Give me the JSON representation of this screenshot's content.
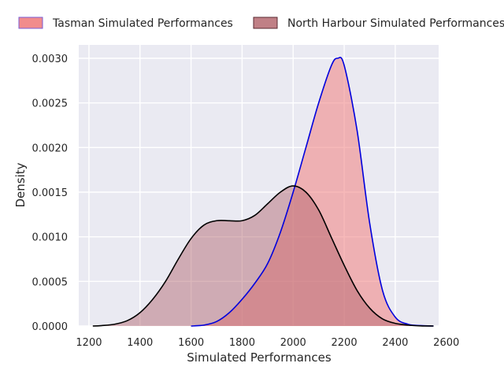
{
  "chart_data": {
    "type": "area",
    "xlabel": "Simulated Performances",
    "ylabel": "Density",
    "xlim": [
      1160,
      2570
    ],
    "ylim": [
      0,
      0.00315
    ],
    "x_ticks": [
      1200,
      1400,
      1600,
      1800,
      2000,
      2200,
      2400,
      2600
    ],
    "x_tick_labels": [
      "1200",
      "1400",
      "1600",
      "1800",
      "2000",
      "2200",
      "2400",
      "2600"
    ],
    "y_ticks": [
      0,
      0.0005,
      0.001,
      0.0015,
      0.002,
      0.0025,
      0.003
    ],
    "y_tick_labels": [
      "0.0000",
      "0.0005",
      "0.0010",
      "0.0015",
      "0.0020",
      "0.0025",
      "0.0030"
    ],
    "grid": true,
    "legend_position": "top (above plot, two columns)",
    "background": "#eaeaf2",
    "series": [
      {
        "name": "Tasman Simulated Performances",
        "fill": "#f08080",
        "fill_opacity": 0.55,
        "line_color": "#0000dd",
        "x": [
          1600,
          1650,
          1700,
          1750,
          1800,
          1850,
          1900,
          1950,
          2000,
          2050,
          2100,
          2150,
          2175,
          2200,
          2250,
          2300,
          2350,
          2400,
          2450,
          2500,
          2550
        ],
        "y": [
          0.0,
          1e-05,
          5e-05,
          0.00015,
          0.0003,
          0.00048,
          0.0007,
          0.00105,
          0.0015,
          0.002,
          0.0025,
          0.00292,
          0.003,
          0.00292,
          0.0022,
          0.00115,
          0.0004,
          0.0001,
          2e-05,
          5e-06,
          0.0
        ]
      },
      {
        "name": "North Harbour Simulated Performances",
        "fill": "#b06068",
        "fill_opacity": 0.45,
        "line_color": "#000000",
        "x": [
          1215,
          1250,
          1300,
          1350,
          1400,
          1450,
          1500,
          1550,
          1600,
          1650,
          1700,
          1750,
          1800,
          1850,
          1900,
          1950,
          2000,
          2050,
          2100,
          2150,
          2200,
          2250,
          2300,
          2350,
          2400,
          2450,
          2500,
          2550
        ],
        "y": [
          0.0,
          5e-06,
          2e-05,
          6e-05,
          0.00015,
          0.0003,
          0.0005,
          0.00075,
          0.00098,
          0.00113,
          0.00118,
          0.00118,
          0.00118,
          0.00124,
          0.00137,
          0.0015,
          0.00157,
          0.0015,
          0.0013,
          0.00099,
          0.00068,
          0.0004,
          0.0002,
          8e-05,
          3e-05,
          1e-05,
          2e-06,
          0.0
        ]
      }
    ]
  }
}
